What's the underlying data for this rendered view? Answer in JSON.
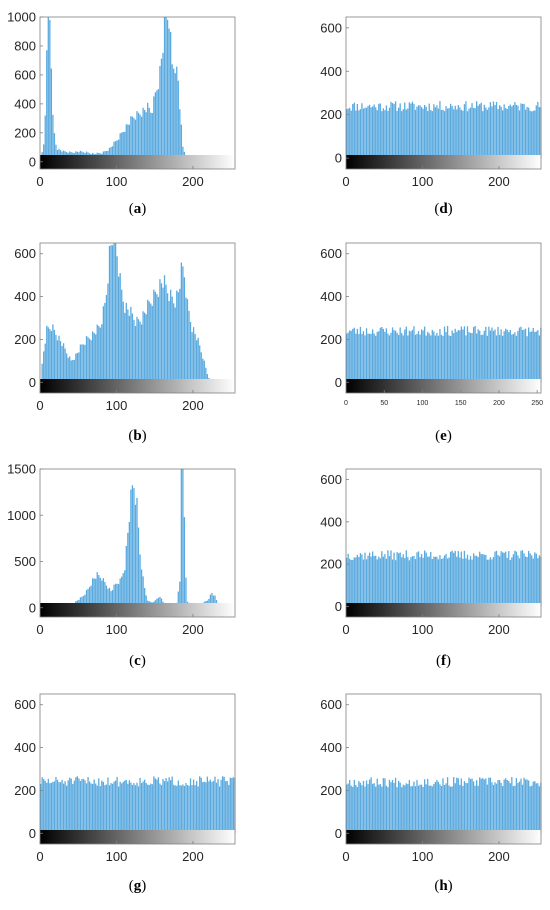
{
  "chart_data": [
    {
      "id": "a",
      "type": "histogram",
      "caption_letter": "a",
      "xlim": [
        0,
        255
      ],
      "ylim": [
        -50,
        1000
      ],
      "xticks": [
        0,
        100,
        200
      ],
      "yticks": [
        0,
        200,
        400,
        600,
        800,
        1000
      ],
      "colorbar": "grayscale",
      "series": [
        {
          "bars": [
            [
              0,
              5
            ],
            [
              4,
              120
            ],
            [
              7,
              450
            ],
            [
              9,
              950
            ],
            [
              10,
              1000
            ],
            [
              12,
              1000
            ],
            [
              14,
              700
            ],
            [
              16,
              300
            ],
            [
              19,
              140
            ],
            [
              22,
              90
            ],
            [
              30,
              70
            ],
            [
              40,
              65
            ],
            [
              50,
              70
            ],
            [
              60,
              65
            ],
            [
              70,
              55
            ],
            [
              80,
              60
            ],
            [
              90,
              90
            ],
            [
              100,
              150
            ],
            [
              110,
              230
            ],
            [
              120,
              300
            ],
            [
              130,
              340
            ],
            [
              140,
              370
            ],
            [
              145,
              340
            ],
            [
              150,
              470
            ],
            [
              155,
              580
            ],
            [
              160,
              800
            ],
            [
              163,
              1000
            ],
            [
              168,
              1000
            ],
            [
              172,
              660
            ],
            [
              176,
              680
            ],
            [
              180,
              560
            ],
            [
              183,
              300
            ],
            [
              186,
              100
            ],
            [
              190,
              40
            ],
            [
              200,
              25
            ],
            [
              220,
              15
            ],
            [
              240,
              8
            ],
            [
              255,
              5
            ]
          ]
        }
      ]
    },
    {
      "id": "b",
      "type": "histogram",
      "caption_letter": "b",
      "xlim": [
        0,
        255
      ],
      "ylim": [
        -50,
        650
      ],
      "xticks": [
        0,
        100,
        200
      ],
      "yticks": [
        0,
        200,
        400,
        600
      ],
      "colorbar": "grayscale",
      "series": [
        {
          "bars": [
            [
              0,
              5
            ],
            [
              3,
              120
            ],
            [
              8,
              240
            ],
            [
              14,
              260
            ],
            [
              20,
              230
            ],
            [
              28,
              180
            ],
            [
              35,
              130
            ],
            [
              40,
              100
            ],
            [
              45,
              120
            ],
            [
              52,
              160
            ],
            [
              60,
              200
            ],
            [
              70,
              230
            ],
            [
              78,
              260
            ],
            [
              85,
              380
            ],
            [
              90,
              600
            ],
            [
              95,
              700
            ],
            [
              100,
              600
            ],
            [
              105,
              440
            ],
            [
              110,
              360
            ],
            [
              118,
              320
            ],
            [
              125,
              280
            ],
            [
              132,
              300
            ],
            [
              140,
              350
            ],
            [
              148,
              400
            ],
            [
              155,
              450
            ],
            [
              160,
              470
            ],
            [
              165,
              430
            ],
            [
              170,
              400
            ],
            [
              175,
              380
            ],
            [
              180,
              420
            ],
            [
              185,
              530
            ],
            [
              188,
              500
            ],
            [
              192,
              360
            ],
            [
              198,
              260
            ],
            [
              205,
              200
            ],
            [
              212,
              120
            ],
            [
              218,
              40
            ],
            [
              222,
              5
            ],
            [
              230,
              0
            ],
            [
              255,
              0
            ]
          ]
        }
      ]
    },
    {
      "id": "c",
      "type": "histogram",
      "caption_letter": "c",
      "xlim": [
        0,
        255
      ],
      "ylim": [
        -100,
        1500
      ],
      "xticks": [
        0,
        100,
        200
      ],
      "yticks": [
        0,
        500,
        1000,
        1500
      ],
      "colorbar": "grayscale",
      "series": [
        {
          "bars": [
            [
              0,
              0
            ],
            [
              25,
              0
            ],
            [
              30,
              5
            ],
            [
              35,
              30
            ],
            [
              45,
              60
            ],
            [
              55,
              120
            ],
            [
              62,
              200
            ],
            [
              68,
              300
            ],
            [
              74,
              350
            ],
            [
              80,
              320
            ],
            [
              86,
              250
            ],
            [
              92,
              180
            ],
            [
              98,
              250
            ],
            [
              105,
              300
            ],
            [
              110,
              450
            ],
            [
              115,
              900
            ],
            [
              119,
              1250
            ],
            [
              122,
              1320
            ],
            [
              126,
              1100
            ],
            [
              130,
              600
            ],
            [
              135,
              250
            ],
            [
              140,
              70
            ],
            [
              148,
              60
            ],
            [
              154,
              120
            ],
            [
              158,
              100
            ],
            [
              162,
              40
            ],
            [
              170,
              40
            ],
            [
              178,
              50
            ],
            [
              182,
              300
            ],
            [
              184,
              1500
            ],
            [
              187,
              1500
            ],
            [
              189,
              500
            ],
            [
              192,
              60
            ],
            [
              200,
              30
            ],
            [
              210,
              40
            ],
            [
              218,
              80
            ],
            [
              224,
              160
            ],
            [
              228,
              120
            ],
            [
              233,
              20
            ],
            [
              240,
              0
            ],
            [
              255,
              0
            ]
          ]
        }
      ]
    },
    {
      "id": "d",
      "type": "histogram",
      "caption_letter": "d",
      "xlim": [
        0,
        255
      ],
      "ylim": [
        -50,
        650
      ],
      "xticks": [
        0,
        100,
        200
      ],
      "yticks": [
        0,
        200,
        400,
        600
      ],
      "colorbar": "grayscale",
      "series": [
        {
          "level": 245,
          "noise": 30,
          "seed": 11
        }
      ]
    },
    {
      "id": "e",
      "type": "histogram",
      "caption_letter": "e",
      "xlim": [
        0,
        255
      ],
      "ylim": [
        -50,
        650
      ],
      "xticks": [
        0,
        50,
        100,
        150,
        200,
        250
      ],
      "yticks": [
        0,
        200,
        400,
        600
      ],
      "colorbar": "grayscale",
      "series": [
        {
          "level": 245,
          "noise": 30,
          "seed": 23
        }
      ]
    },
    {
      "id": "f",
      "type": "histogram",
      "caption_letter": "f",
      "xlim": [
        0,
        255
      ],
      "ylim": [
        -50,
        650
      ],
      "xticks": [
        0,
        100,
        200
      ],
      "yticks": [
        0,
        200,
        400,
        600
      ],
      "colorbar": "grayscale",
      "series": [
        {
          "level": 248,
          "noise": 30,
          "seed": 37
        }
      ]
    },
    {
      "id": "g",
      "type": "histogram",
      "caption_letter": "g",
      "xlim": [
        0,
        255
      ],
      "ylim": [
        -50,
        650
      ],
      "xticks": [
        0,
        100,
        200
      ],
      "yticks": [
        0,
        200,
        400,
        600
      ],
      "colorbar": "grayscale",
      "series": [
        {
          "level": 248,
          "noise": 30,
          "seed": 51
        }
      ]
    },
    {
      "id": "h",
      "type": "histogram",
      "caption_letter": "h",
      "xlim": [
        0,
        255
      ],
      "ylim": [
        -50,
        650
      ],
      "xticks": [
        0,
        100,
        200
      ],
      "yticks": [
        0,
        200,
        400,
        600
      ],
      "colorbar": "grayscale",
      "series": [
        {
          "level": 245,
          "noise": 30,
          "seed": 67
        }
      ]
    }
  ],
  "colors": {
    "bar": "#5aaadf",
    "axis": "#808080",
    "tick_text": "#262626"
  }
}
